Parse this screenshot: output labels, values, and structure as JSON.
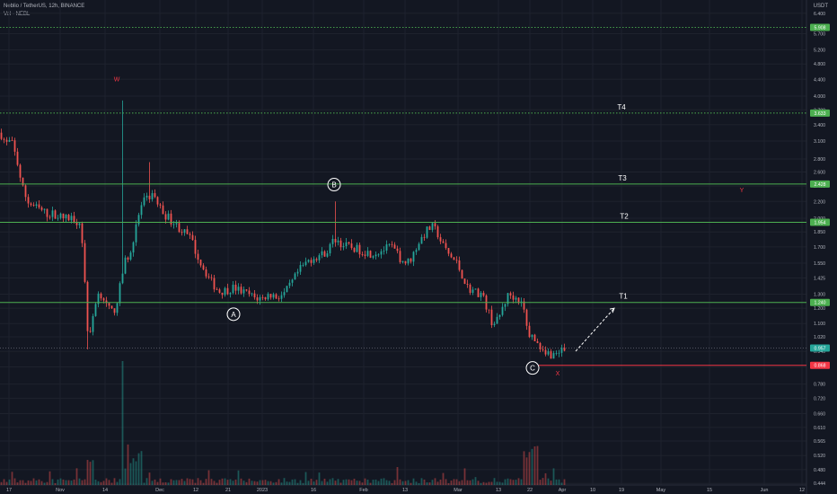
{
  "header": {
    "title": "Neblio / TetherUS, 12h, BINANCE",
    "volume_label": "Vol · NEBL",
    "currency": "USDT"
  },
  "colors": {
    "background": "#131722",
    "grid": "#1e222d",
    "candle_up": "#26a69a",
    "candle_down": "#ef5350",
    "target_line": "#4caf50",
    "stop_line": "#f23645",
    "axis_text": "#b2b5be",
    "wave_label": "#ffffff",
    "alt_label": "#f23645"
  },
  "chart_data": {
    "type": "candlestick",
    "y_axis": {
      "scale": "log",
      "ylim": [
        0.44,
        6.9
      ],
      "ticks": [
        "0.444",
        "0.480",
        "0.520",
        "0.565",
        "0.610",
        "0.660",
        "0.720",
        "0.780",
        "0.860",
        "0.940",
        "1.020",
        "1.100",
        "1.200",
        "1.300",
        "1.425",
        "1.550",
        "1.700",
        "1.850",
        "2.000",
        "2.200",
        "2.400",
        "2.600",
        "2.800",
        "3.100",
        "3.400",
        "3.700",
        "4.000",
        "4.400",
        "4.800",
        "5.200",
        "5.700",
        "6.400"
      ]
    },
    "x_axis": {
      "ticks": [
        "17",
        "Nov",
        "14",
        "Dec",
        "12",
        "21",
        "2023",
        "16",
        "Feb",
        "13",
        "Mar",
        "13",
        "22",
        "Apr",
        "10",
        "19",
        "May",
        "15",
        "Jun",
        "12"
      ]
    },
    "price_labels": [
      {
        "value": "5.908",
        "kind": "level"
      },
      {
        "value": "3.633",
        "kind": "target"
      },
      {
        "value": "2.428",
        "kind": "target"
      },
      {
        "value": "1.954",
        "kind": "target"
      },
      {
        "value": "1.240",
        "kind": "target"
      },
      {
        "value": "0.957",
        "kind": "current"
      },
      {
        "value": "0.868",
        "kind": "stop"
      }
    ],
    "targets": [
      {
        "name": "T4",
        "price": 3.633
      },
      {
        "name": "T3",
        "price": 2.428
      },
      {
        "name": "T2",
        "price": 1.954
      },
      {
        "name": "T1",
        "price": 1.24
      }
    ],
    "stop_level": 0.868,
    "top_level": 5.908,
    "current_price": 0.957,
    "wave_labels": [
      "A",
      "B",
      "C"
    ],
    "alt_labels": [
      "W",
      "Y",
      "X"
    ],
    "path": [
      [
        0,
        3.25
      ],
      [
        6,
        3.05
      ],
      [
        12,
        3.1
      ],
      [
        18,
        2.8
      ],
      [
        24,
        2.4
      ],
      [
        30,
        2.2
      ],
      [
        36,
        2.15
      ],
      [
        44,
        2.1
      ],
      [
        52,
        2.05
      ],
      [
        60,
        2.05
      ],
      [
        70,
        2.0
      ],
      [
        80,
        2.0
      ],
      [
        88,
        1.95
      ],
      [
        92,
        1.7
      ],
      [
        95,
        1.25
      ],
      [
        98,
        0.99
      ],
      [
        101,
        1.05
      ],
      [
        104,
        1.2
      ],
      [
        108,
        1.3
      ],
      [
        113,
        1.3
      ],
      [
        118,
        1.22
      ],
      [
        123,
        1.17
      ],
      [
        128,
        1.2
      ],
      [
        133,
        1.35
      ],
      [
        138,
        1.55
      ],
      [
        144,
        1.65
      ],
      [
        150,
        1.85
      ],
      [
        155,
        2.1
      ],
      [
        160,
        2.2
      ],
      [
        165,
        2.25
      ],
      [
        170,
        2.3
      ],
      [
        176,
        2.15
      ],
      [
        182,
        2.05
      ],
      [
        188,
        2.0
      ],
      [
        196,
        1.92
      ],
      [
        204,
        1.85
      ],
      [
        212,
        1.78
      ],
      [
        220,
        1.6
      ],
      [
        228,
        1.48
      ],
      [
        236,
        1.38
      ],
      [
        244,
        1.32
      ],
      [
        252,
        1.33
      ],
      [
        260,
        1.35
      ],
      [
        268,
        1.32
      ],
      [
        276,
        1.3
      ],
      [
        284,
        1.27
      ],
      [
        292,
        1.27
      ],
      [
        300,
        1.3
      ],
      [
        308,
        1.28
      ],
      [
        316,
        1.3
      ],
      [
        324,
        1.38
      ],
      [
        332,
        1.48
      ],
      [
        340,
        1.55
      ],
      [
        348,
        1.6
      ],
      [
        356,
        1.62
      ],
      [
        364,
        1.66
      ],
      [
        370,
        1.75
      ],
      [
        374,
        1.78
      ],
      [
        380,
        1.72
      ],
      [
        388,
        1.7
      ],
      [
        396,
        1.68
      ],
      [
        404,
        1.66
      ],
      [
        412,
        1.64
      ],
      [
        420,
        1.65
      ],
      [
        428,
        1.68
      ],
      [
        436,
        1.7
      ],
      [
        444,
        1.6
      ],
      [
        452,
        1.55
      ],
      [
        458,
        1.6
      ],
      [
        464,
        1.72
      ],
      [
        470,
        1.8
      ],
      [
        476,
        1.88
      ],
      [
        481,
        1.9
      ],
      [
        486,
        1.85
      ],
      [
        492,
        1.72
      ],
      [
        500,
        1.62
      ],
      [
        508,
        1.55
      ],
      [
        514,
        1.45
      ],
      [
        520,
        1.35
      ],
      [
        528,
        1.32
      ],
      [
        536,
        1.3
      ],
      [
        542,
        1.2
      ],
      [
        548,
        1.1
      ],
      [
        554,
        1.12
      ],
      [
        560,
        1.22
      ],
      [
        566,
        1.3
      ],
      [
        572,
        1.28
      ],
      [
        578,
        1.26
      ],
      [
        583,
        1.18
      ],
      [
        587,
        1.05
      ],
      [
        592,
        1.02
      ],
      [
        598,
        0.98
      ],
      [
        604,
        0.96
      ],
      [
        610,
        0.93
      ],
      [
        616,
        0.92
      ],
      [
        622,
        0.94
      ],
      [
        630,
        0.95
      ]
    ],
    "volume": "relative per-candle volume bars along the bottom; largest spikes near 14 Nov and late March"
  }
}
